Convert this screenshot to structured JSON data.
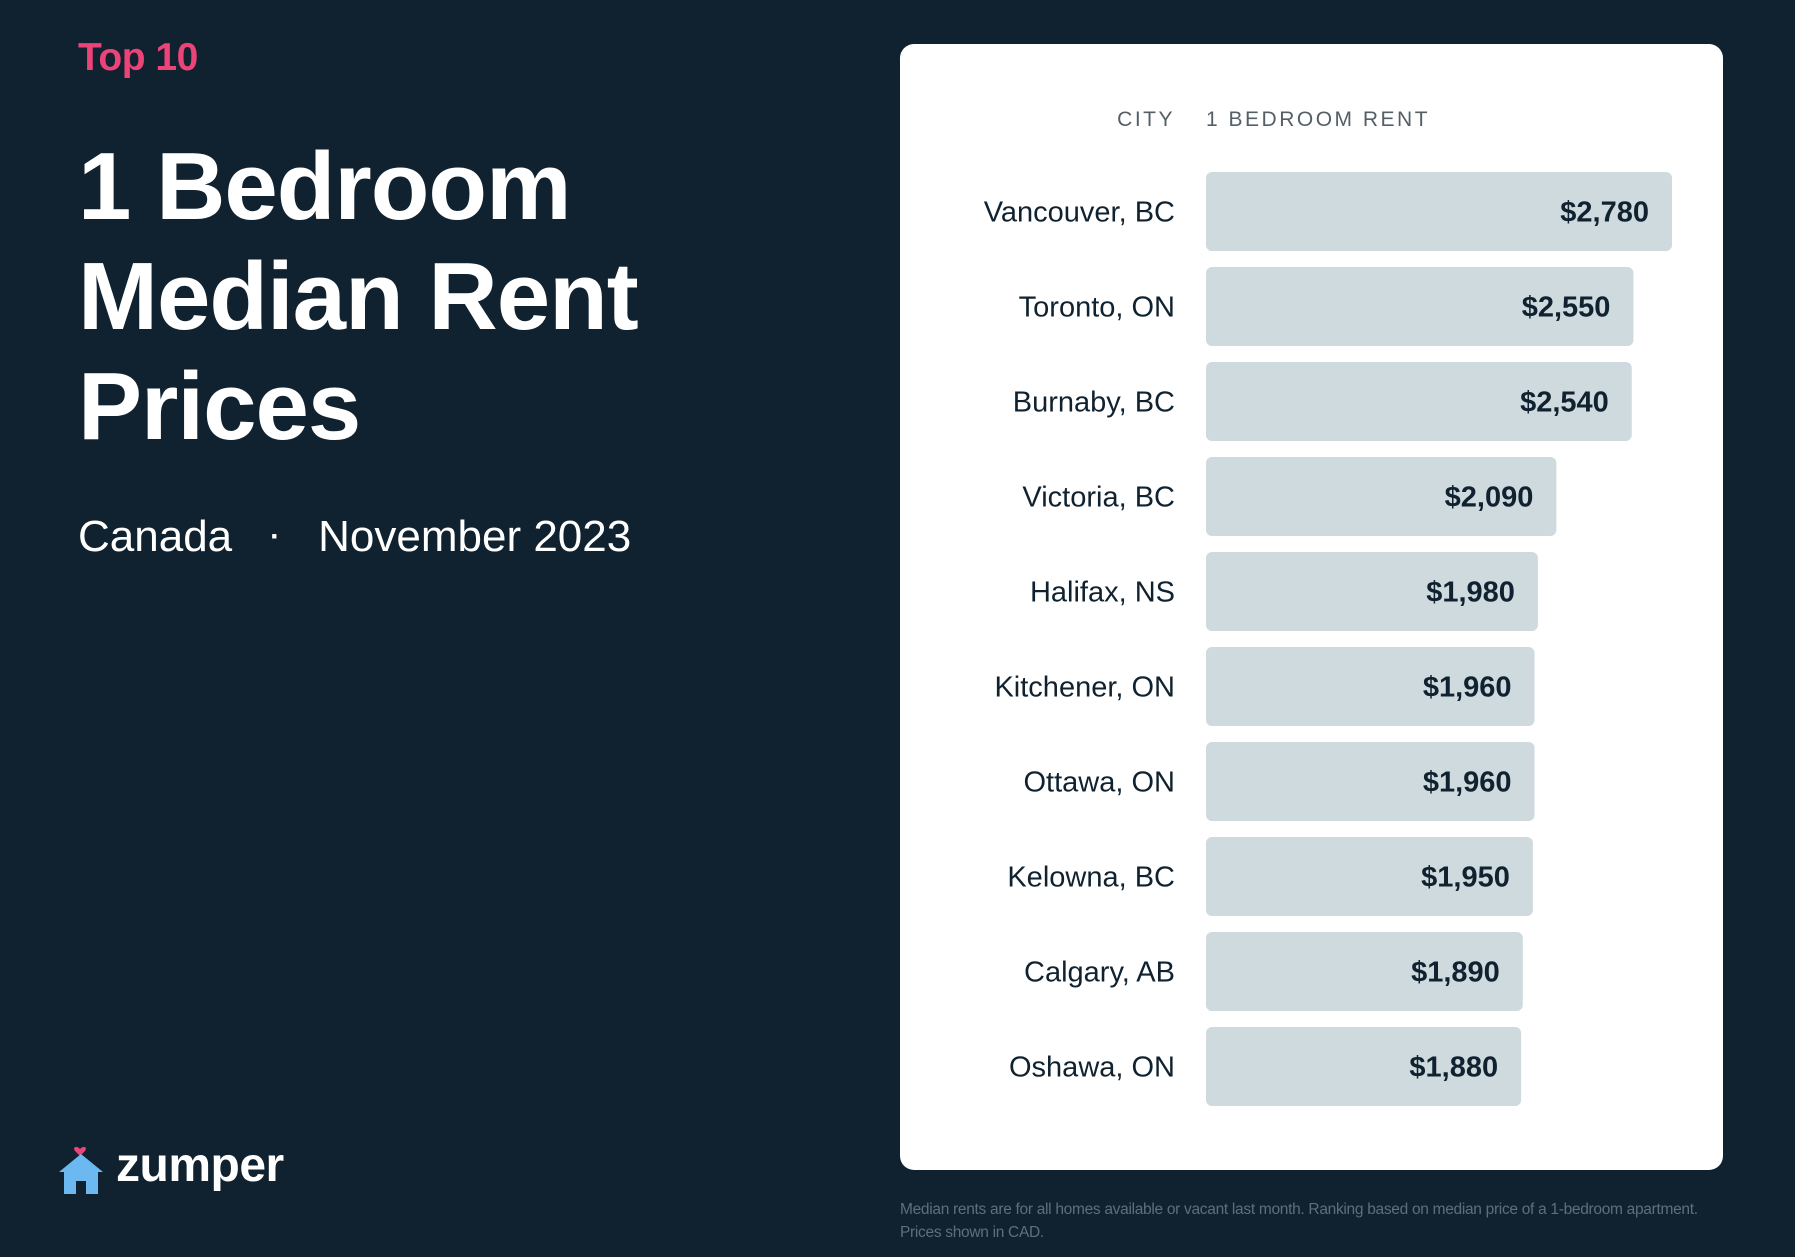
{
  "header": {
    "eyebrow": "Top 10",
    "title_lines": [
      "1 Bedroom",
      "Median Rent",
      "Prices"
    ],
    "region": "Canada",
    "separator": "·",
    "period": "November 2023"
  },
  "logo": {
    "text": "zumper",
    "icon": "house-heart-icon"
  },
  "colors": {
    "background": "#10222f",
    "accent": "#ec4379",
    "bar": "#cfdadf",
    "logo_icon": "#6bb9f0"
  },
  "chart_data": {
    "type": "bar",
    "orientation": "horizontal",
    "column_headers": {
      "category": "CITY",
      "value": "1 BEDROOM RENT"
    },
    "categories": [
      "Vancouver, BC",
      "Toronto, ON",
      "Burnaby, BC",
      "Victoria, BC",
      "Halifax, NS",
      "Kitchener, ON",
      "Ottawa, ON",
      "Kelowna, BC",
      "Calgary, AB",
      "Oshawa, ON"
    ],
    "values": [
      2780,
      2550,
      2540,
      2090,
      1980,
      1960,
      1960,
      1950,
      1890,
      1880
    ],
    "value_labels": [
      "$2,780",
      "$2,550",
      "$2,540",
      "$2,090",
      "$1,980",
      "$1,960",
      "$1,960",
      "$1,950",
      "$1,890",
      "$1,880"
    ],
    "xlim": [
      0,
      2780
    ],
    "grid": false,
    "legend": "none"
  },
  "footnote": "Median rents are for all homes available or vacant last month. Ranking based on median price of a 1-bedroom apartment. Prices shown in CAD."
}
